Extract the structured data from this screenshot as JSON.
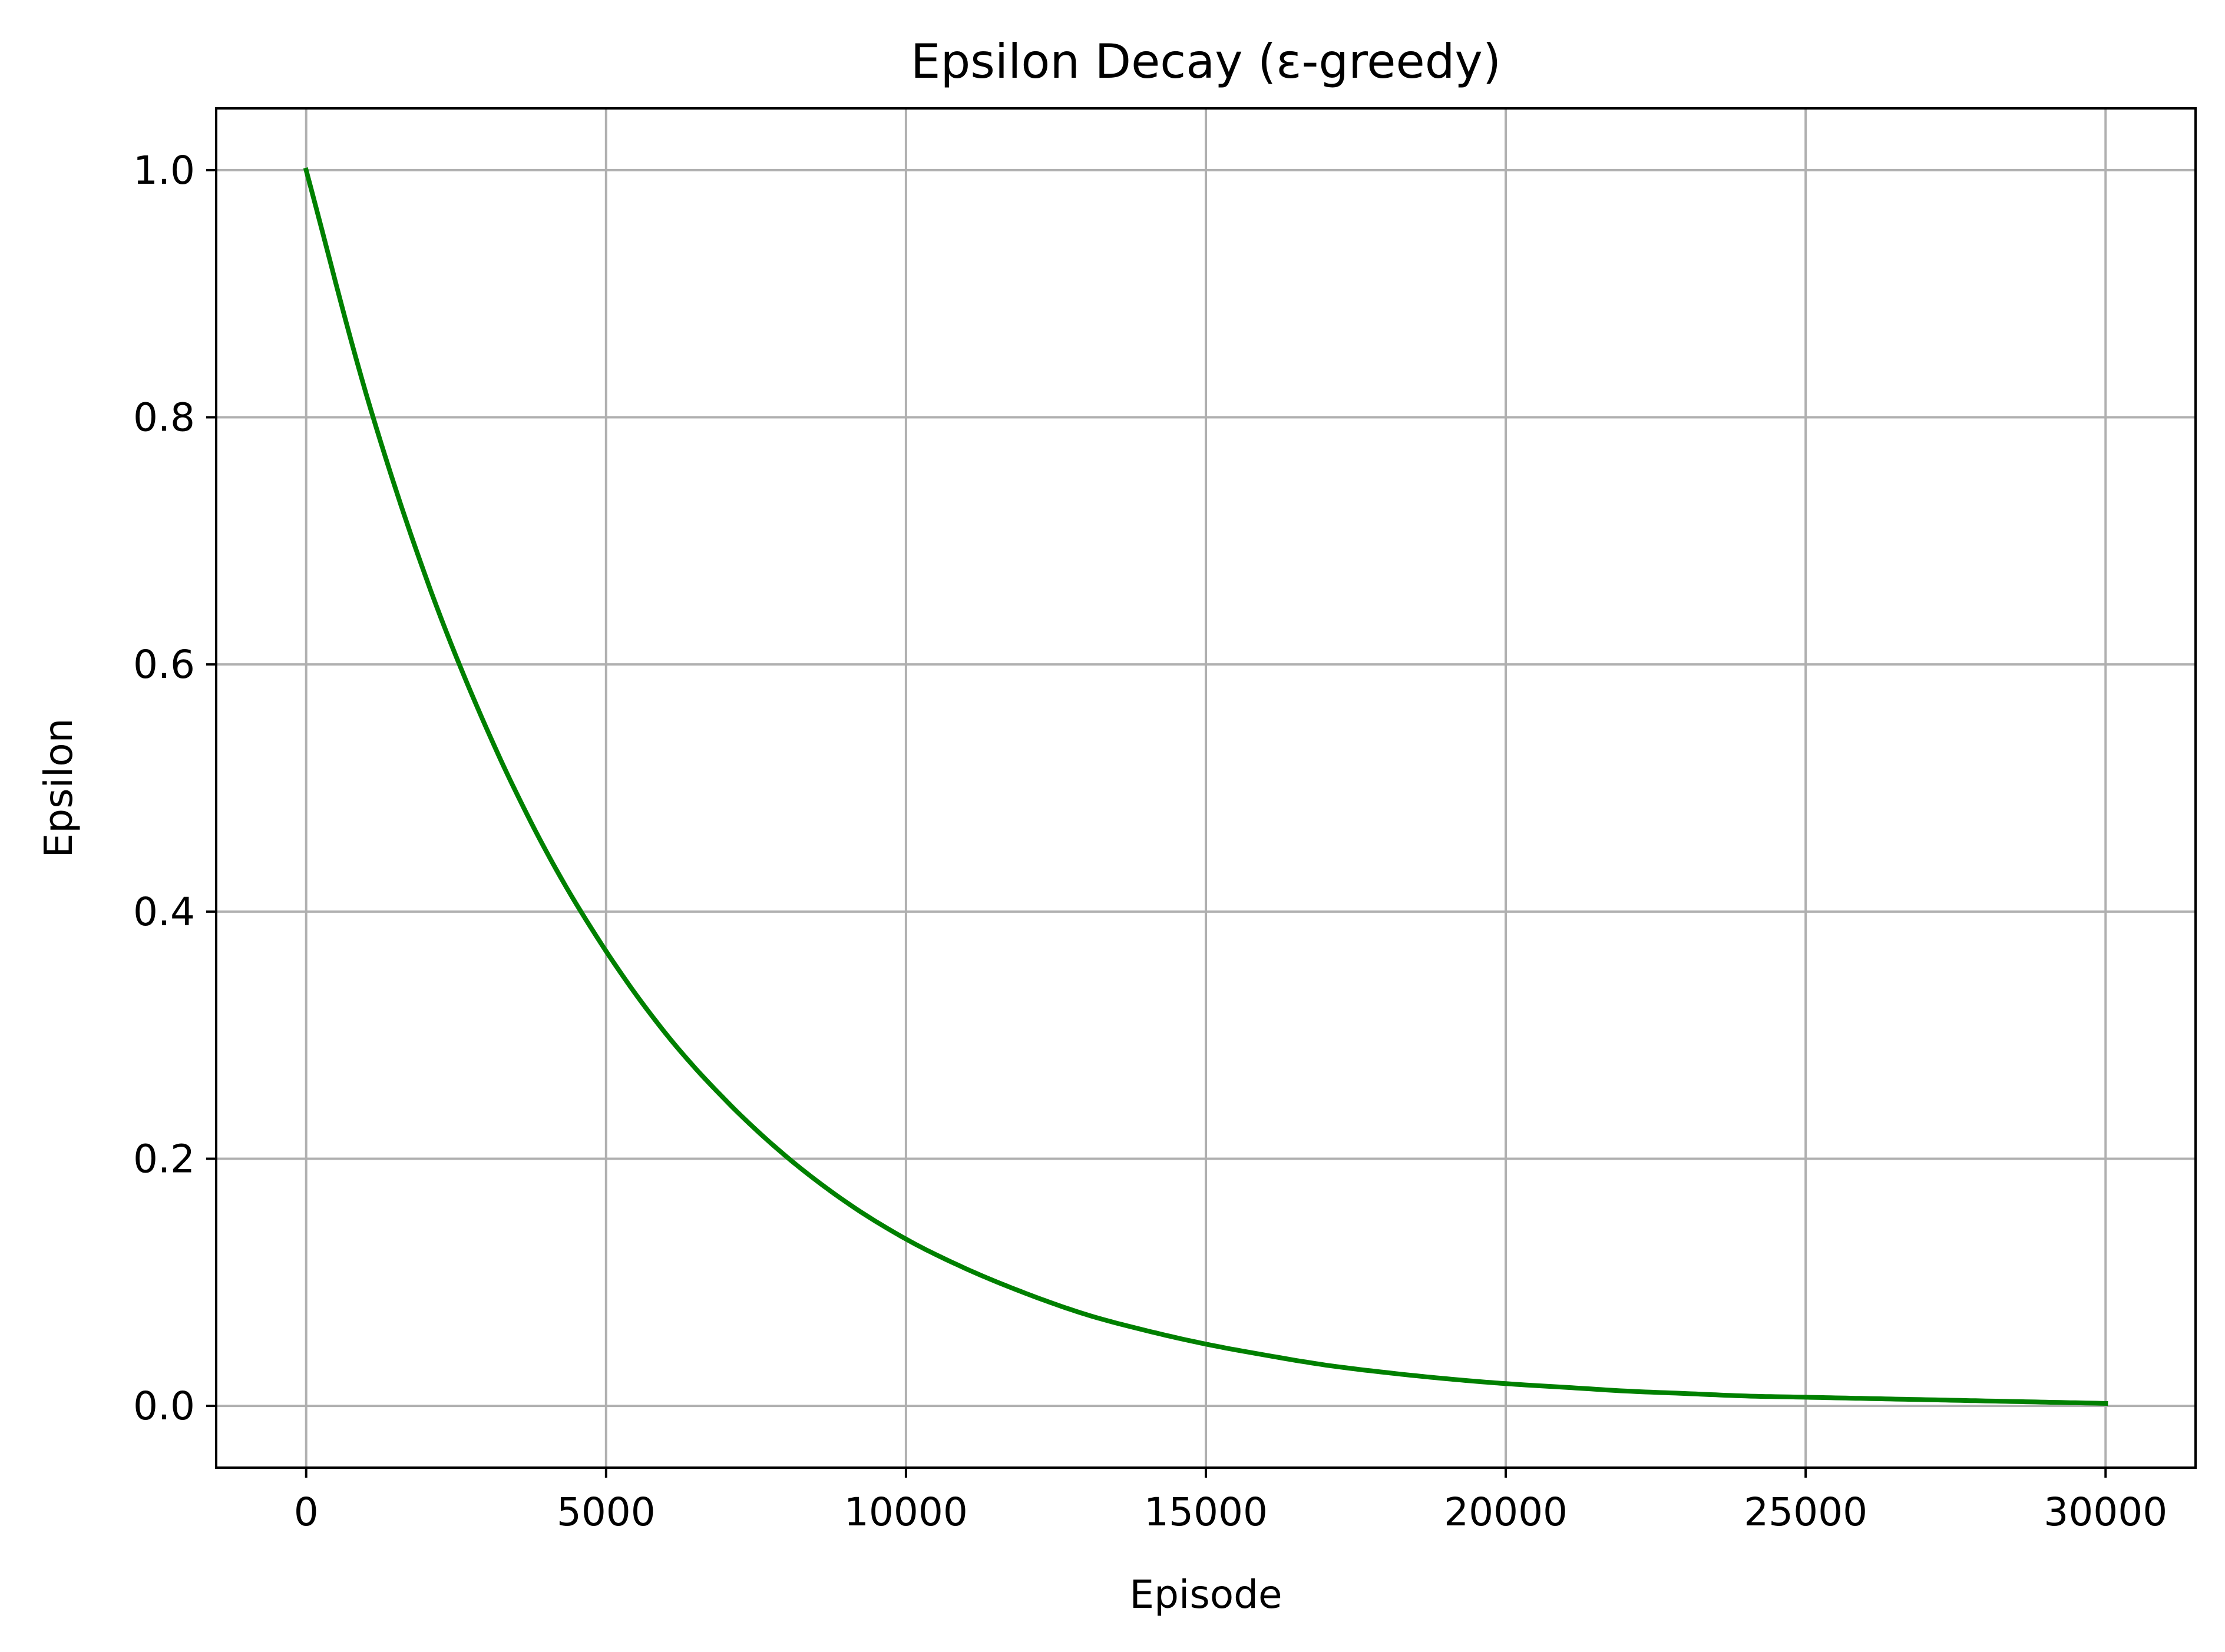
{
  "chart_data": {
    "type": "line",
    "title": "Epsilon Decay (ε-greedy)",
    "xlabel": "Episode",
    "ylabel": "Epsilon",
    "xlim": [
      -1500,
      31500
    ],
    "ylim": [
      -0.05,
      1.05
    ],
    "x_ticks": [
      0,
      5000,
      10000,
      15000,
      20000,
      25000,
      30000
    ],
    "x_tick_labels": [
      "0",
      "5000",
      "10000",
      "15000",
      "20000",
      "25000",
      "30000"
    ],
    "y_ticks": [
      0.0,
      0.2,
      0.4,
      0.6,
      0.8,
      1.0
    ],
    "y_tick_labels": [
      "0.0",
      "0.2",
      "0.4",
      "0.6",
      "0.8",
      "1.0"
    ],
    "grid": true,
    "legend": "none",
    "colors": {
      "line": "#008000",
      "grid": "#b0b0b0",
      "axes": "#000000"
    },
    "series": [
      {
        "color": "#008000",
        "x": [
          0,
          1000,
          2000,
          3000,
          4000,
          5000,
          6000,
          7000,
          8000,
          9000,
          10000,
          11000,
          12000,
          13000,
          14000,
          15000,
          16000,
          17000,
          18000,
          19000,
          20000,
          21000,
          22000,
          23000,
          24000,
          25000,
          26000,
          27000,
          28000,
          29000,
          30000
        ],
        "y": [
          1.0,
          0.819,
          0.67,
          0.549,
          0.449,
          0.368,
          0.301,
          0.247,
          0.202,
          0.165,
          0.135,
          0.111,
          0.091,
          0.074,
          0.061,
          0.05,
          0.041,
          0.033,
          0.027,
          0.022,
          0.018,
          0.015,
          0.012,
          0.01,
          0.008,
          0.007,
          0.006,
          0.005,
          0.004,
          0.003,
          0.002
        ]
      }
    ]
  }
}
